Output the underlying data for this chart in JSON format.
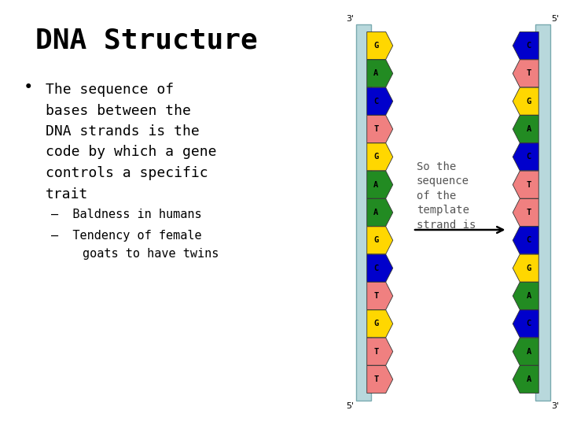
{
  "title": "DNA Structure",
  "bg_color": "#ffffff",
  "title_fontsize": 26,
  "body_fontsize": 13,
  "sub_fontsize": 11,
  "left_strand_bases": [
    "G",
    "A",
    "C",
    "T",
    "G",
    "A",
    "A",
    "G",
    "C",
    "T",
    "G",
    "T",
    "T"
  ],
  "right_strand_bases": [
    "C",
    "T",
    "G",
    "A",
    "C",
    "T",
    "T",
    "C",
    "G",
    "A",
    "C",
    "A",
    "A"
  ],
  "base_colors": {
    "G": "#FFD700",
    "A": "#228B22",
    "C": "#0000CC",
    "T": "#F08080"
  },
  "strand_color": "#B8D8DC",
  "strand_label_left_top": "3'",
  "strand_label_left_bottom": "5'",
  "strand_label_right_top": "5'",
  "strand_label_right_bottom": "3'",
  "annotation_text": "So the\nsequence\nof the\ntemplate\nstrand is",
  "annotation_color": "#555555",
  "annotation_fontsize": 10
}
